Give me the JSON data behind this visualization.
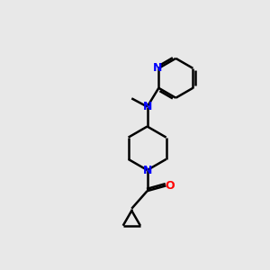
{
  "bg_color": "#e8e8e8",
  "bond_color": "#000000",
  "N_color": "#0000ff",
  "O_color": "#ff0000",
  "line_width": 1.8,
  "font_size": 8.5,
  "fig_size": [
    3.0,
    3.0
  ],
  "dpi": 100,
  "xlim": [
    0,
    10
  ],
  "ylim": [
    0,
    10
  ]
}
